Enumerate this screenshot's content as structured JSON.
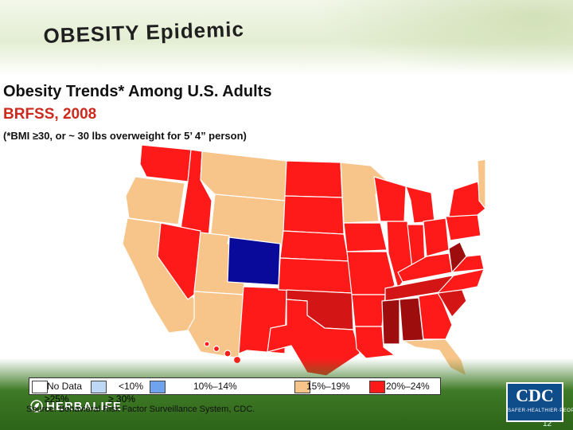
{
  "slide": {
    "title": "OBESITY Epidemic",
    "subtitle": "Obesity Trends* Among U.S. Adults",
    "survey": "BRFSS, 2008",
    "footnote": "(*BMI ≥30, or ~ 30 lbs overweight for 5’ 4” person)",
    "source": "Source: Behavioral Risk Factor Surveillance System, CDC.",
    "brand": "HERBALIFE",
    "page_number": "12"
  },
  "cdc_logo": {
    "text": "CDC",
    "tagline": "SAFER·HEALTHIER·PEOPLE"
  },
  "legend": [
    {
      "label": "No Data",
      "color": "#ffffff"
    },
    {
      "label": "<10%",
      "color": "#bcd8f5"
    },
    {
      "label": "10%–14%",
      "color": "#6fa3ee"
    },
    {
      "label": "15%–19%",
      "color": "#f7c48a"
    },
    {
      "label": "20%–24%",
      "color": "#ff1a1a"
    },
    {
      "label": "≥25%",
      "color": "#b01010"
    },
    {
      "label": "≥ 30%",
      "color": "#8a0a0a"
    }
  ],
  "map_colors": {
    "lt15": "#0a0a9a",
    "c15_19": "#f7c48a",
    "c20_24": "#ff1a1a",
    "c25_29": "#d41515",
    "ge30": "#9e0d0d",
    "border": "#ffffff"
  }
}
